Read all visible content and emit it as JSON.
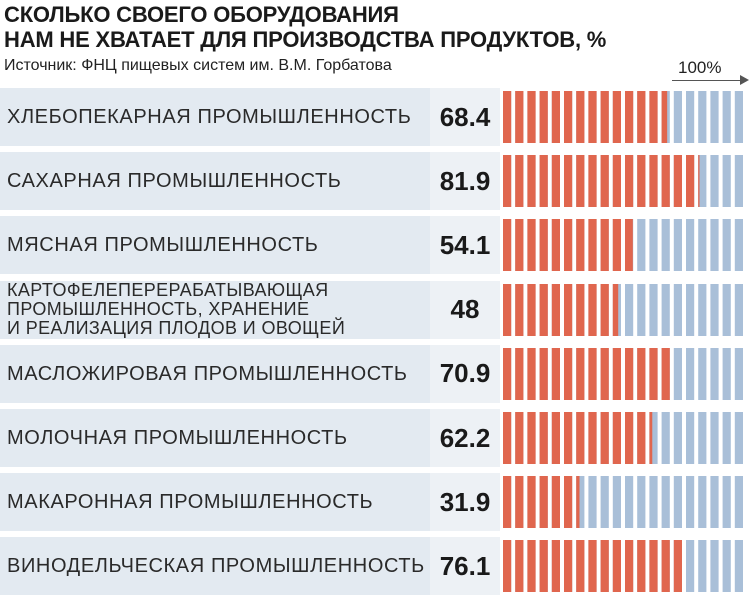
{
  "title": "СКОЛЬКО СВОЕГО ОБОРУДОВАНИЯ\nНАМ НЕ ХВАТАЕТ ДЛЯ ПРОИЗВОДСТВА ПРОДУКТОВ, %",
  "source": "Источник: ФНЦ пищевых систем им. В.М. Горбатова",
  "scale_label": "100%",
  "colors": {
    "filled": "#e0664e",
    "empty": "#a9bfd8"
  },
  "chart_data": {
    "type": "bar",
    "title": "СКОЛЬКО СВОЕГО ОБОРУДОВАНИЯ НАМ НЕ ХВАТАЕТ ДЛЯ ПРОИЗВОДСТВА ПРОДУКТОВ, %",
    "xlim": [
      0,
      100
    ],
    "categories": [
      "ХЛЕБОПЕКАРНАЯ ПРОМЫШЛЕННОСТЬ",
      "САХАРНАЯ ПРОМЫШЛЕННОСТЬ",
      "МЯСНАЯ ПРОМЫШЛЕННОСТЬ",
      "КАРТОФЕЛЕПЕРЕРАБАТЫВАЮЩАЯ\nПРОМЫШЛЕННОСТЬ, ХРАНЕНИЕ\nИ РЕАЛИЗАЦИЯ ПЛОДОВ И ОВОЩЕЙ",
      "МАСЛОЖИРОВАЯ ПРОМЫШЛЕННОСТЬ",
      "МОЛОЧНАЯ ПРОМЫШЛЕННОСТЬ",
      "МАКАРОННАЯ ПРОМЫШЛЕННОСТЬ",
      "ВИНОДЕЛЬЧЕСКАЯ ПРОМЫШЛЕННОСТЬ"
    ],
    "value_labels": [
      "68.4",
      "81.9",
      "54.1",
      "48",
      "70.9",
      "62.2",
      "31.9",
      "76.1"
    ],
    "values": [
      68.4,
      81.9,
      54.1,
      48,
      70.9,
      62.2,
      31.9,
      76.1
    ]
  }
}
